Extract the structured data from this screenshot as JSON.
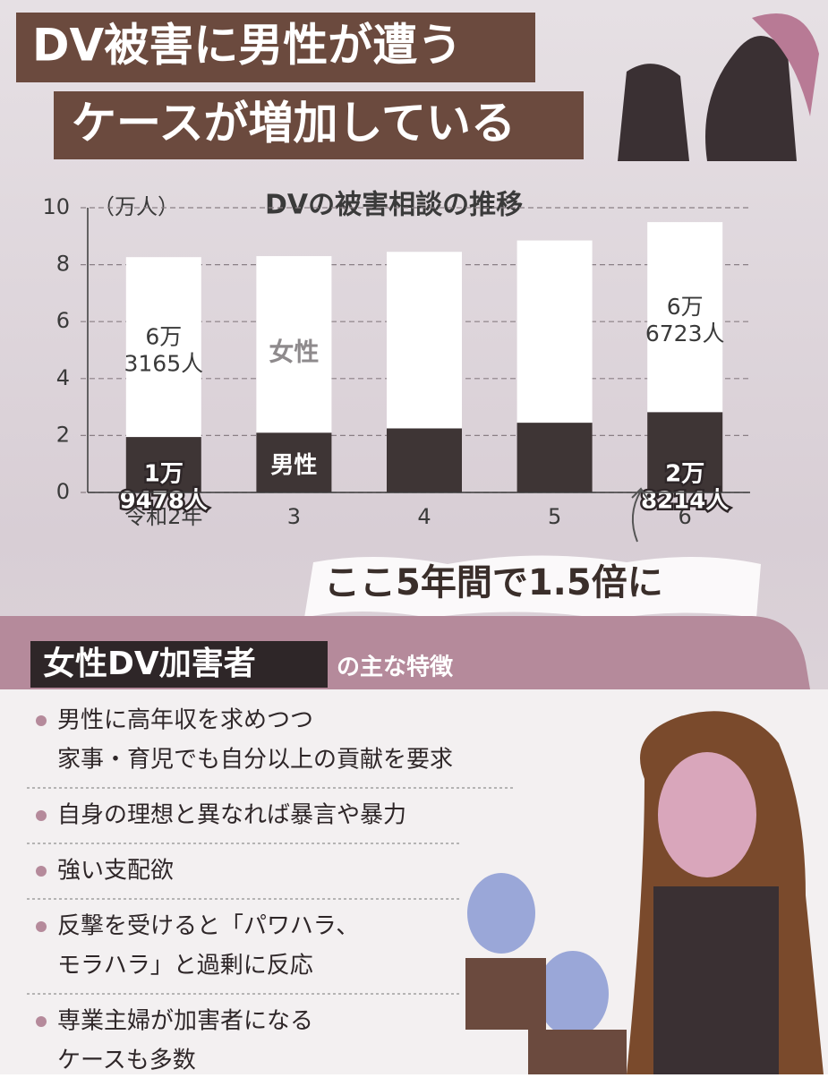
{
  "header": {
    "line1": "DV被害に男性が遭う",
    "line2": "ケースが増加している"
  },
  "chart_data": {
    "type": "stacked_bar",
    "title": "DVの被害相談の推移",
    "y_label": "（万人）",
    "categories": [
      "令和2年",
      "3",
      "4",
      "5",
      "6"
    ],
    "series": [
      {
        "name": "男性",
        "color": "#3e3535",
        "values": [
          1.9478,
          2.1,
          2.25,
          2.45,
          2.8214
        ],
        "value_labels": [
          [
            "1万",
            "9478人"
          ],
          null,
          null,
          null,
          [
            "2万",
            "8214人"
          ]
        ]
      },
      {
        "name": "女性",
        "color": "#ffffff",
        "values": [
          6.3165,
          6.2,
          6.2,
          6.4,
          6.6723
        ],
        "value_labels": [
          [
            "6万",
            "3165人"
          ],
          null,
          null,
          null,
          [
            "6万",
            "6723人"
          ]
        ]
      }
    ],
    "ylim": [
      0,
      10
    ],
    "yticks": [
      0,
      2,
      4,
      6,
      8,
      10
    ],
    "grid": true,
    "annotation": "ここ5年間で1.5倍に"
  },
  "features": {
    "title": "女性DV加害者",
    "subtitle": "の主な特徴",
    "items": [
      [
        "男性に高年収を求めつつ",
        "家事・育児でも自分以上の貢献を要求"
      ],
      [
        "自身の理想と異なれば暴言や暴力"
      ],
      [
        "強い支配欲"
      ],
      [
        "反撃を受けると「パワハラ、",
        "モラハラ」と過剰に反応"
      ],
      [
        "専業主婦が加害者になる",
        "ケースも多数"
      ]
    ]
  }
}
